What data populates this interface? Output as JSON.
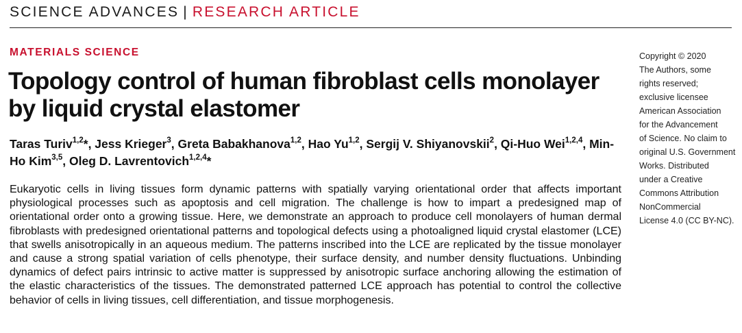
{
  "header": {
    "journal": "SCIENCE ADVANCES",
    "separator": "|",
    "article_type": "RESEARCH ARTICLE"
  },
  "section": "MATERIALS SCIENCE",
  "title": "Topology control of human fibroblast cells monolayer by liquid crystal elastomer",
  "authors": [
    {
      "name": "Taras Turiv",
      "affil": "1,2",
      "corresponding": true,
      "sep": ", "
    },
    {
      "name": "Jess Krieger",
      "affil": "3",
      "corresponding": false,
      "sep": ", "
    },
    {
      "name": "Greta Babakhanova",
      "affil": "1,2",
      "corresponding": false,
      "sep": ", "
    },
    {
      "name": "Hao Yu",
      "affil": "1,2",
      "corresponding": false,
      "sep": ", "
    },
    {
      "name": "Sergij V. Shiyanovskii",
      "affil": "2",
      "corresponding": false,
      "sep": ", "
    },
    {
      "name": "Qi-Huo Wei",
      "affil": "1,2,4",
      "corresponding": false,
      "sep": ", "
    },
    {
      "name": "Min-Ho Kim",
      "affil": "3,5",
      "corresponding": false,
      "sep": ", "
    },
    {
      "name": "Oleg D. Lavrentovich",
      "affil": "1,2,4",
      "corresponding": true,
      "sep": ""
    }
  ],
  "abstract": "Eukaryotic cells in living tissues form dynamic patterns with spatially varying orientational order that affects important physiological processes such as apoptosis and cell migration. The challenge is how to impart a predesigned map of orientational order onto a growing tissue. Here, we demonstrate an approach to produce cell monolayers of human dermal fibroblasts with predesigned orientational patterns and topological defects using a photoaligned liquid crystal elastomer (LCE) that swells anisotropically in an aqueous medium. The patterns inscribed into the LCE are replicated by the tissue monolayer and cause a strong spatial variation of cells phenotype, their surface density, and number density fluctuations. Unbinding dynamics of defect pairs intrinsic to active matter is suppressed by anisotropic surface anchoring allowing the estimation of the elastic characteristics of the tissues. The demonstrated patterned LCE approach has potential to control the collective behavior of cells in living tissues, cell differentiation, and tissue morphogenesis.",
  "copyright_lines": [
    "Copyright © 2020",
    "The Authors, some",
    "rights reserved;",
    "exclusive licensee",
    "American Association",
    "for the Advancement",
    "of Science. No claim to",
    "original U.S. Government",
    "Works. Distributed",
    "under a Creative",
    "Commons Attribution",
    "NonCommercial",
    "License 4.0 (CC BY-NC)."
  ],
  "colors": {
    "accent": "#c8102e",
    "text": "#111111"
  }
}
